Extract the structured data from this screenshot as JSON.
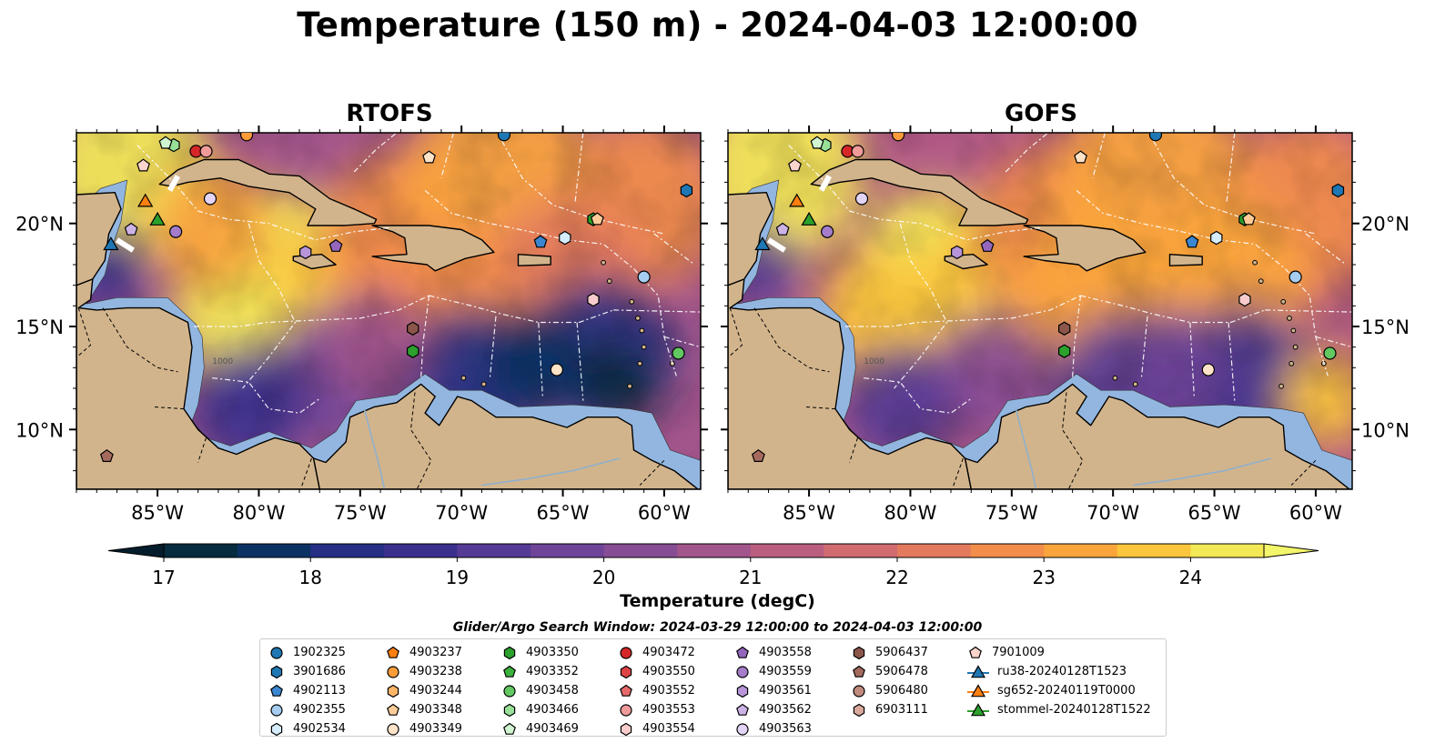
{
  "title": "Temperature (150 m) - 2024-04-03 12:00:00",
  "panels": [
    {
      "title": "RTOFS"
    },
    {
      "title": "GOFS"
    }
  ],
  "axes": {
    "x_ticks": [
      "85°W",
      "80°W",
      "75°W",
      "70°W",
      "65°W",
      "60°W"
    ],
    "y_ticks": [
      "20°N",
      "15°N",
      "10°N"
    ]
  },
  "contour_label": "1000",
  "colorbar": {
    "label": "Temperature (degC)",
    "ticks": [
      "17",
      "18",
      "19",
      "20",
      "21",
      "22",
      "23",
      "24"
    ],
    "range": [
      17,
      24.5
    ],
    "colors": [
      "#062a3e",
      "#0c3264",
      "#242f85",
      "#3b2f8e",
      "#553a96",
      "#6e4498",
      "#874d94",
      "#a2558b",
      "#ba5e7f",
      "#d06b70",
      "#e37a5e",
      "#f28d4b",
      "#faa53c",
      "#fbc63b",
      "#f3e957"
    ]
  },
  "search_window": "Glider/Argo Search Window: 2024-03-29 12:00:00 to 2024-04-03 12:00:00",
  "legend": [
    [
      {
        "label": "1902325",
        "shape": "circle",
        "color": "#1f77b4"
      },
      {
        "label": "3901686",
        "shape": "hexagon",
        "color": "#1f77b4"
      },
      {
        "label": "4902113",
        "shape": "pentagon",
        "color": "#3b86d1"
      },
      {
        "label": "4902355",
        "shape": "circle",
        "color": "#a6cdf0"
      },
      {
        "label": "4902534",
        "shape": "hexagon",
        "color": "#d5ecfa"
      }
    ],
    [
      {
        "label": "4903237",
        "shape": "pentagon",
        "color": "#ff7f0e"
      },
      {
        "label": "4903238",
        "shape": "circle",
        "color": "#ff9c3a"
      },
      {
        "label": "4903244",
        "shape": "hexagon",
        "color": "#ffb566"
      },
      {
        "label": "4903348",
        "shape": "pentagon",
        "color": "#ffcc99"
      },
      {
        "label": "4903349",
        "shape": "circle",
        "color": "#ffe3c8"
      }
    ],
    [
      {
        "label": "4903350",
        "shape": "hexagon",
        "color": "#2ca02c"
      },
      {
        "label": "4903352",
        "shape": "pentagon",
        "color": "#3cb23c"
      },
      {
        "label": "4903458",
        "shape": "circle",
        "color": "#62c962"
      },
      {
        "label": "4903466",
        "shape": "hexagon",
        "color": "#98e098"
      },
      {
        "label": "4903469",
        "shape": "pentagon",
        "color": "#d0f5d0"
      }
    ],
    [
      {
        "label": "4903472",
        "shape": "circle",
        "color": "#d62728"
      },
      {
        "label": "4903550",
        "shape": "hexagon",
        "color": "#dd4445"
      },
      {
        "label": "4903552",
        "shape": "pentagon",
        "color": "#e66a6a"
      },
      {
        "label": "4903553",
        "shape": "circle",
        "color": "#f09a9a"
      },
      {
        "label": "4903554",
        "shape": "hexagon",
        "color": "#f8cccc"
      }
    ],
    [
      {
        "label": "4903558",
        "shape": "pentagon",
        "color": "#9467bd"
      },
      {
        "label": "4903559",
        "shape": "circle",
        "color": "#a47cca"
      },
      {
        "label": "4903561",
        "shape": "hexagon",
        "color": "#b795d8"
      },
      {
        "label": "4903562",
        "shape": "pentagon",
        "color": "#ccb3e6"
      },
      {
        "label": "4903563",
        "shape": "circle",
        "color": "#e3d3f4"
      }
    ],
    [
      {
        "label": "5906437",
        "shape": "hexagon",
        "color": "#8c564b"
      },
      {
        "label": "5906478",
        "shape": "pentagon",
        "color": "#a56a5e"
      },
      {
        "label": "5906480",
        "shape": "circle",
        "color": "#c08a7e"
      },
      {
        "label": "6903111",
        "shape": "hexagon",
        "color": "#d9a89d"
      }
    ],
    [
      {
        "label": "7901009",
        "shape": "pentagon",
        "color": "#fbd4cc"
      },
      {
        "label": "ru38-20240128T1523",
        "shape": "triangle-line",
        "color": "#1f77b4"
      },
      {
        "label": "sg652-20240119T0000",
        "shape": "triangle-line",
        "color": "#ff7f0e"
      },
      {
        "label": "stommel-20240128T1522",
        "shape": "triangle-line",
        "color": "#2ca02c"
      }
    ]
  ],
  "markers": [
    {
      "lon": -67.9,
      "lat": 24.3,
      "shape": "circle",
      "color": "#1f77b4"
    },
    {
      "lon": -58.9,
      "lat": 21.6,
      "shape": "hexagon",
      "color": "#1f77b4"
    },
    {
      "lon": -66.1,
      "lat": 19.1,
      "shape": "pentagon",
      "color": "#3b86d1"
    },
    {
      "lon": -61.0,
      "lat": 17.4,
      "shape": "circle",
      "color": "#a6cdf0"
    },
    {
      "lon": -64.9,
      "lat": 19.3,
      "shape": "hexagon",
      "color": "#d5ecfa"
    },
    {
      "lon": -80.6,
      "lat": 24.3,
      "shape": "circle",
      "color": "#ff9c3a"
    },
    {
      "lon": -65.3,
      "lat": 12.9,
      "shape": "circle",
      "color": "#ffe3c8"
    },
    {
      "lon": -63.5,
      "lat": 20.2,
      "shape": "hexagon",
      "color": "#2ca02c"
    },
    {
      "lon": -72.4,
      "lat": 13.8,
      "shape": "hexagon",
      "color": "#2ca02c"
    },
    {
      "lon": -59.3,
      "lat": 13.7,
      "shape": "circle",
      "color": "#62c962"
    },
    {
      "lon": -84.2,
      "lat": 23.8,
      "shape": "hexagon",
      "color": "#98e098"
    },
    {
      "lon": -84.6,
      "lat": 23.9,
      "shape": "pentagon",
      "color": "#d0f5d0"
    },
    {
      "lon": -63.3,
      "lat": 20.2,
      "shape": "pentagon",
      "color": "#ffcc99"
    },
    {
      "lon": -71.6,
      "lat": 23.2,
      "shape": "pentagon",
      "color": "#ffe3c8"
    },
    {
      "lon": -83.1,
      "lat": 23.5,
      "shape": "circle",
      "color": "#d62728"
    },
    {
      "lon": -82.6,
      "lat": 23.5,
      "shape": "circle",
      "color": "#f09a9a"
    },
    {
      "lon": -63.5,
      "lat": 16.3,
      "shape": "hexagon",
      "color": "#f8cccc"
    },
    {
      "lon": -76.2,
      "lat": 18.9,
      "shape": "pentagon",
      "color": "#9467bd"
    },
    {
      "lon": -84.1,
      "lat": 19.6,
      "shape": "circle",
      "color": "#a47cca"
    },
    {
      "lon": -77.7,
      "lat": 18.6,
      "shape": "hexagon",
      "color": "#b795d8"
    },
    {
      "lon": -86.3,
      "lat": 19.7,
      "shape": "pentagon",
      "color": "#ccb3e6"
    },
    {
      "lon": -82.4,
      "lat": 21.2,
      "shape": "circle",
      "color": "#e3d3f4"
    },
    {
      "lon": -72.4,
      "lat": 14.9,
      "shape": "hexagon",
      "color": "#8c564b"
    },
    {
      "lon": -87.5,
      "lat": 8.7,
      "shape": "pentagon",
      "color": "#a56a5e"
    },
    {
      "lon": -85.7,
      "lat": 22.8,
      "shape": "pentagon",
      "color": "#fbd4cc"
    },
    {
      "lon": -87.3,
      "lat": 19.0,
      "shape": "triangle",
      "color": "#1f77b4"
    },
    {
      "lon": -85.6,
      "lat": 21.1,
      "shape": "triangle",
      "color": "#ff7f0e"
    },
    {
      "lon": -85.0,
      "lat": 20.2,
      "shape": "triangle",
      "color": "#2ca02c"
    }
  ]
}
